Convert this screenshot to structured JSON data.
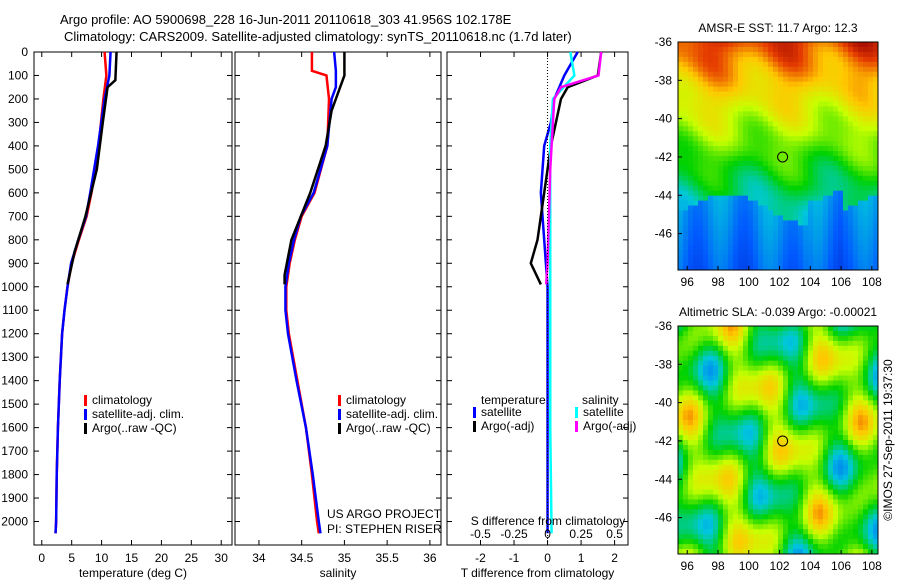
{
  "title_line1": "Argo profile: AO 5900698_228 16-Jun-2011 20110618_303 41.956S 102.178E",
  "title_line2": "Climatology: CARS2009. Satellite-adjusted climatology: synTS_20110618.nc (1.7d later)",
  "credit": "US ARGO PROJECT",
  "pi": "PI: STEPHEN RISER",
  "stamp": "©IMOS 27-Sep-2011 19:37:30",
  "colors": {
    "climatology": "#ff0000",
    "satellite": "#0000ff",
    "argo": "#000000",
    "sal_satellite": "#00ffff",
    "sal_argo": "#ff00ff"
  },
  "chart_data": [
    {
      "type": "line",
      "id": "temperature",
      "xlabel": "temperature (deg C)",
      "ylabel": "",
      "xlim": [
        -1.3,
        31.8
      ],
      "ylim": [
        2100,
        0
      ],
      "xticks": [
        0,
        5,
        10,
        15,
        20,
        25,
        30
      ],
      "yticks": [
        0,
        100,
        200,
        300,
        400,
        500,
        600,
        700,
        800,
        900,
        1000,
        1100,
        1200,
        1300,
        1400,
        1500,
        1600,
        1700,
        1800,
        1900,
        2000
      ],
      "legend": [
        "climatology",
        "satellite-adj. clim.",
        "Argo(..raw -QC)"
      ],
      "series": [
        {
          "name": "climatology",
          "color": "#ff0000",
          "depth": [
            0,
            100,
            200,
            400,
            600,
            700,
            800,
            900,
            1000,
            1100,
            1200,
            1400,
            1600,
            1800,
            2000,
            2050
          ],
          "values": [
            10.5,
            10.8,
            10.3,
            9.5,
            8.3,
            7.5,
            6.2,
            5.0,
            4.3,
            3.8,
            3.4,
            3.0,
            2.7,
            2.5,
            2.4,
            2.3
          ]
        },
        {
          "name": "satellite-adj. clim.",
          "color": "#0000ff",
          "depth": [
            0,
            100,
            200,
            400,
            600,
            700,
            800,
            900,
            1000,
            1100,
            1200,
            1400,
            1600,
            1800,
            2000,
            2050
          ],
          "values": [
            11.5,
            11.3,
            10.5,
            9.4,
            8.1,
            7.4,
            6.1,
            4.9,
            4.3,
            3.8,
            3.4,
            3.0,
            2.7,
            2.5,
            2.4,
            2.3
          ]
        },
        {
          "name": "Argo(..raw -QC)",
          "color": "#000000",
          "depth": [
            0,
            120,
            150,
            300,
            500,
            700,
            850,
            990
          ],
          "values": [
            12.5,
            12.3,
            11.0,
            10.2,
            9.2,
            7.3,
            5.5,
            4.3
          ]
        }
      ]
    },
    {
      "type": "line",
      "id": "salinity",
      "xlabel": "salinity",
      "xlim": [
        33.72,
        36.13
      ],
      "ylim": [
        2100,
        0
      ],
      "xticks": [
        34,
        34.5,
        35,
        35.5,
        36
      ],
      "legend": [
        "climatology",
        "satellite-adj. clim.",
        "Argo(..raw -QC)"
      ],
      "series": [
        {
          "name": "climatology",
          "color": "#ff0000",
          "depth": [
            0,
            80,
            100,
            200,
            400,
            600,
            700,
            800,
            900,
            1000,
            1100,
            1200,
            1400,
            1600,
            1800,
            2000,
            2050
          ],
          "values": [
            34.62,
            34.62,
            34.79,
            34.82,
            34.8,
            34.65,
            34.5,
            34.42,
            34.36,
            34.32,
            34.32,
            34.35,
            34.45,
            34.55,
            34.62,
            34.68,
            34.7
          ]
        },
        {
          "name": "satellite-adj. clim.",
          "color": "#0000ff",
          "depth": [
            0,
            80,
            150,
            200,
            400,
            600,
            700,
            800,
            900,
            1000,
            1100,
            1200,
            1400,
            1600,
            1800,
            2000,
            2050
          ],
          "values": [
            34.88,
            34.9,
            34.9,
            34.85,
            34.8,
            34.64,
            34.49,
            34.41,
            34.35,
            34.31,
            34.31,
            34.34,
            34.44,
            34.55,
            34.63,
            34.7,
            34.72
          ]
        },
        {
          "name": "Argo(..raw -QC)",
          "color": "#000000",
          "depth": [
            0,
            100,
            150,
            250,
            400,
            600,
            800,
            950,
            990
          ],
          "values": [
            35.0,
            35.0,
            34.95,
            34.85,
            34.78,
            34.6,
            34.38,
            34.3,
            34.3
          ]
        }
      ]
    },
    {
      "type": "line",
      "id": "difference",
      "xlabel": "T difference from climatology",
      "x2label": "S difference from climatology",
      "xlim": [
        -3,
        2.4
      ],
      "ylim": [
        2100,
        0
      ],
      "xticks": [
        -2,
        -1,
        0,
        1,
        2
      ],
      "x2ticks": [
        -0.5,
        -0.25,
        0,
        0.25,
        0.5
      ],
      "legend_temperature": {
        "title": "temperature",
        "items": [
          "satellite",
          "Argo(-adj)"
        ]
      },
      "legend_salinity": {
        "title": "salinity",
        "items": [
          "satellite",
          "Argo(-adj)"
        ]
      },
      "series": [
        {
          "name": "T satellite",
          "color": "#0000ff",
          "unit": "T",
          "depth": [
            0,
            100,
            200,
            300,
            400,
            600,
            800,
            1000,
            2050
          ],
          "values": [
            0.9,
            0.5,
            0.2,
            0.1,
            -0.1,
            -0.2,
            -0.1,
            0,
            0
          ]
        },
        {
          "name": "T Argo(-adj)",
          "color": "#000000",
          "unit": "T",
          "depth": [
            0,
            100,
            150,
            200,
            400,
            600,
            800,
            900,
            990
          ],
          "values": [
            1.6,
            1.5,
            0.6,
            0.4,
            0.1,
            -0.1,
            -0.3,
            -0.5,
            -0.2
          ]
        },
        {
          "name": "S satellite",
          "color": "#00ffff",
          "unit": "S",
          "depth": [
            0,
            100,
            200,
            400,
            800,
            1200,
            1600,
            2050
          ],
          "values": [
            0.17,
            0.2,
            0.04,
            0.02,
            0.02,
            0.02,
            0.02,
            0.03
          ]
        },
        {
          "name": "S Argo(-adj)",
          "color": "#ff00ff",
          "unit": "S",
          "depth": [
            0,
            100,
            150,
            200,
            500,
            900,
            990
          ],
          "values": [
            0.4,
            0.38,
            0.1,
            0.05,
            0.02,
            0,
            -0.01
          ]
        }
      ]
    },
    {
      "type": "heatmap",
      "id": "sst_map",
      "title": "AMSR-E SST: 11.7 Argo: 12.3",
      "xticks": [
        96,
        98,
        100,
        102,
        104,
        106,
        108
      ],
      "yticks": [
        -36,
        -38,
        -40,
        -42,
        -44,
        -46
      ],
      "marker": [
        102.2,
        -42
      ]
    },
    {
      "type": "heatmap",
      "id": "sla_map",
      "title": "Altimetric SLA: -0.039 Argo: -0.00021",
      "xticks": [
        96,
        98,
        100,
        102,
        104,
        106,
        108
      ],
      "yticks": [
        -36,
        -38,
        -40,
        -42,
        -44,
        -46
      ],
      "marker": [
        102.2,
        -42
      ]
    }
  ]
}
